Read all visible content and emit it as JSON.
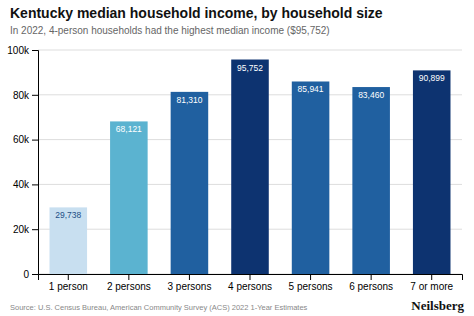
{
  "chart_data": {
    "type": "bar",
    "title": "Kentucky median household income, by household size",
    "subtitle": "In 2022, 4-person households had the highest median income ($95,752)",
    "categories": [
      "1 person",
      "2 persons",
      "3 persons",
      "4 persons",
      "5 persons",
      "6 persons",
      "7 or more"
    ],
    "values": [
      29738,
      68121,
      81310,
      95752,
      85941,
      83460,
      90899
    ],
    "value_labels": [
      "29,738",
      "68,121",
      "81,310",
      "95,752",
      "85,941",
      "83,460",
      "90,899"
    ],
    "colors": [
      "#c8dff0",
      "#5bb3d0",
      "#2060a0",
      "#0d3370",
      "#2060a0",
      "#2060a0",
      "#0d3370"
    ],
    "data_labels": true,
    "ylim": [
      0,
      100000
    ],
    "yticks": [
      0,
      {
        "value": 20000,
        "label": "20k"
      },
      {
        "value": 40000,
        "label": "40k"
      },
      {
        "value": 60000,
        "label": "60k"
      },
      {
        "value": 80000,
        "label": "80k"
      },
      {
        "value": 100000,
        "label": "100k"
      }
    ],
    "grid": true,
    "source": "Source: U.S. Census Bureau, American Community Survey (ACS) 2022 1-Year Estimates",
    "brand": "Neilsberg"
  }
}
